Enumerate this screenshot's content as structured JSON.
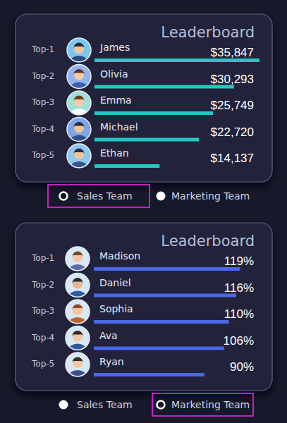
{
  "chart_data": [
    {
      "type": "bar",
      "orientation": "horizontal",
      "title": "Leaderboard",
      "ranks": [
        "Top-1",
        "Top-2",
        "Top-3",
        "Top-4",
        "Top-5"
      ],
      "categories": [
        "James",
        "Olivia",
        "Emma",
        "Michael",
        "Ethan"
      ],
      "values": [
        35847,
        30293,
        25749,
        22720,
        14137
      ],
      "value_labels": [
        "$35,847",
        "$30,293",
        "$25,749",
        "$22,720",
        "$14,137"
      ],
      "data_labels": true,
      "tick_labels": false,
      "color": "#22c9c3",
      "xlim": [
        0,
        36000
      ],
      "options": [
        "Sales Team",
        "Marketing Team"
      ],
      "selected_option": "Sales Team"
    },
    {
      "type": "bar",
      "orientation": "horizontal",
      "title": "Leaderboard",
      "ranks": [
        "Top-1",
        "Top-2",
        "Top-3",
        "Top-4",
        "Top-5"
      ],
      "categories": [
        "Madison",
        "Daniel",
        "Sophia",
        "Ava",
        "Ryan"
      ],
      "values": [
        119,
        116,
        110,
        106,
        90
      ],
      "value_labels": [
        "119%",
        "116%",
        "110%",
        "106%",
        "90%"
      ],
      "data_labels": true,
      "tick_labels": false,
      "color": "#4a68e6",
      "xlim": [
        0,
        120
      ],
      "options": [
        "Sales Team",
        "Marketing Team"
      ],
      "selected_option": "Marketing Team"
    }
  ]
}
